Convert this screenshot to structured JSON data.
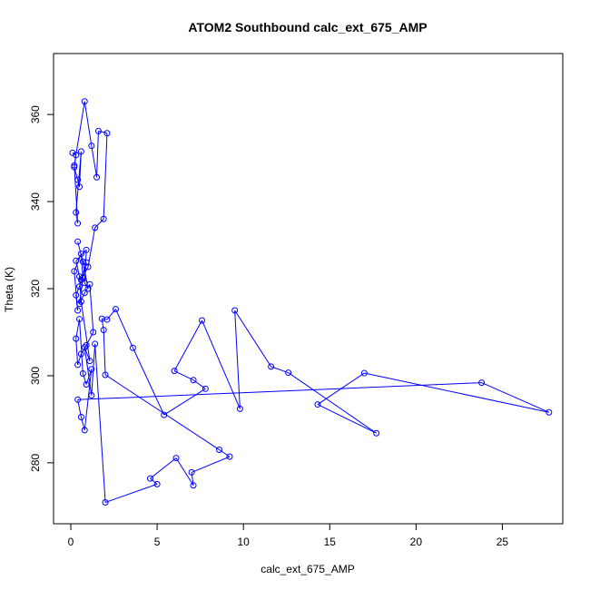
{
  "chart_data": {
    "type": "line",
    "title": "ATOM2 Southbound calc_ext_675_AMP",
    "xlabel": "calc_ext_675_AMP",
    "ylabel": "Theta (K)",
    "xlim": [
      -1.0,
      28.5
    ],
    "ylim": [
      266,
      374
    ],
    "x_ticks": [
      0,
      5,
      10,
      15,
      20,
      25
    ],
    "y_ticks": [
      280,
      300,
      320,
      340,
      360
    ],
    "grid": false,
    "legend": "none",
    "series_color": "#0000ff",
    "marker": "open-circle",
    "x": [
      0.1,
      0.3,
      0.2,
      0.4,
      0.5,
      0.6,
      0.3,
      0.4,
      0.2,
      0.8,
      1.2,
      1.5,
      1.6,
      2.1,
      1.9,
      1.4,
      1.0,
      0.6,
      0.9,
      0.5,
      0.3,
      0.4,
      0.2,
      0.6,
      0.7,
      0.5,
      0.8,
      1.1,
      1.3,
      0.9,
      0.6,
      0.4,
      0.3,
      0.5,
      0.7,
      0.9,
      1.2,
      0.8,
      0.6,
      0.4,
      23.8,
      27.7,
      17.0,
      14.3,
      17.7,
      12.6,
      11.6,
      9.5,
      9.8,
      7.6,
      6.0,
      7.1,
      7.8,
      5.4,
      3.6,
      2.6,
      2.1,
      1.8,
      1.9,
      2.0,
      8.6,
      9.2,
      7.0,
      7.1,
      6.1,
      4.6,
      5.0,
      2.0,
      1.4,
      1.2,
      0.8,
      1.1,
      0.6,
      0.5,
      0.3,
      0.9,
      0.8,
      1.0,
      0.7,
      0.4
    ],
    "y": [
      351.2,
      350.7,
      347.9,
      345.0,
      343.4,
      351.5,
      337.5,
      335.0,
      348.3,
      363.0,
      352.8,
      345.6,
      356.2,
      355.7,
      336.0,
      334.0,
      325.0,
      322.0,
      326.0,
      320.5,
      318.5,
      315.0,
      324.0,
      328.0,
      322.5,
      316.5,
      319.0,
      321.0,
      310.0,
      307.0,
      305.0,
      302.5,
      308.5,
      313.0,
      300.5,
      298.0,
      301.5,
      287.5,
      290.5,
      294.5,
      298.4,
      291.6,
      300.6,
      293.4,
      286.8,
      300.7,
      302.1,
      315.0,
      292.4,
      312.7,
      301.1,
      299.0,
      297.0,
      291.0,
      306.4,
      315.3,
      312.9,
      313.1,
      310.5,
      300.2,
      283.0,
      281.4,
      277.8,
      274.8,
      281.1,
      276.4,
      275.1,
      270.9,
      307.3,
      295.5,
      306.5,
      303.4,
      317.0,
      322.8,
      326.4,
      328.9,
      321.3,
      320.0,
      326.2,
      330.8
    ]
  }
}
